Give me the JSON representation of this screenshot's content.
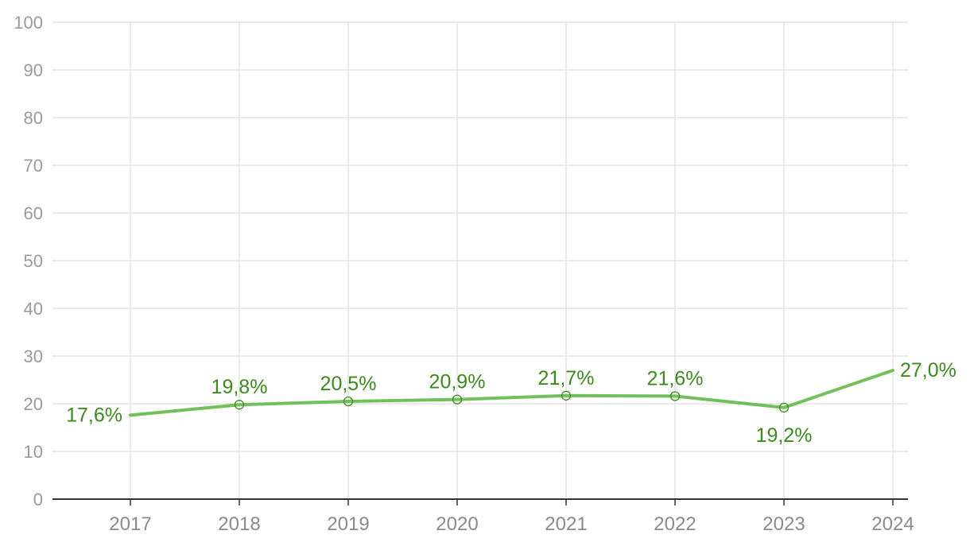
{
  "chart_data": {
    "type": "line",
    "title": "",
    "xlabel": "",
    "ylabel": "",
    "x": [
      "2017",
      "2018",
      "2019",
      "2020",
      "2021",
      "2022",
      "2023",
      "2024"
    ],
    "series": [
      {
        "values": [
          17.6,
          19.8,
          20.5,
          20.9,
          21.7,
          21.6,
          19.2,
          27.0
        ],
        "labels": [
          "17,6%",
          "19,8%",
          "20,5%",
          "20,9%",
          "21,7%",
          "21,6%",
          "19,2%",
          "27,0%"
        ],
        "color": "#72c05b",
        "label_color": "#3c8a1e"
      }
    ],
    "ylim": [
      0,
      100
    ],
    "yticks": [
      "0",
      "10",
      "20",
      "30",
      "40",
      "50",
      "60",
      "70",
      "80",
      "90",
      "100"
    ],
    "grid": true,
    "legend": "none"
  }
}
